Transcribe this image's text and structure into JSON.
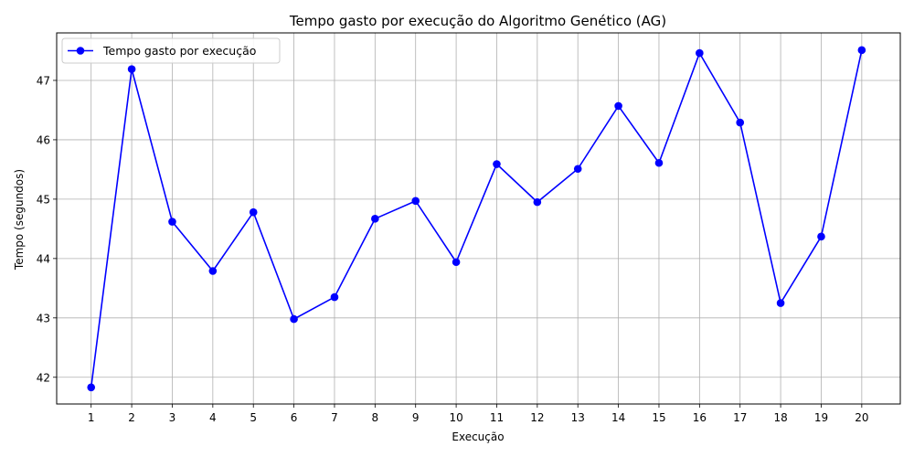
{
  "chart_data": {
    "type": "line",
    "title": "Tempo gasto por execução do Algoritmo Genético (AG)",
    "xlabel": "Execução",
    "ylabel": "Tempo (segundos)",
    "x": [
      1,
      2,
      3,
      4,
      5,
      6,
      7,
      8,
      9,
      10,
      11,
      12,
      13,
      14,
      15,
      16,
      17,
      18,
      19,
      20
    ],
    "xticks": [
      "1",
      "2",
      "3",
      "4",
      "5",
      "6",
      "7",
      "8",
      "9",
      "10",
      "11",
      "12",
      "13",
      "14",
      "15",
      "16",
      "17",
      "18",
      "19",
      "20"
    ],
    "yticks": [
      "42",
      "43",
      "44",
      "45",
      "46",
      "47"
    ],
    "ytick_values": [
      42,
      43,
      44,
      45,
      46,
      47
    ],
    "xlim": [
      0.15,
      20.95
    ],
    "ylim": [
      41.55,
      47.8
    ],
    "grid": true,
    "legend_position": "top-left",
    "series": [
      {
        "name": "Tempo gasto por execução",
        "color": "#0000ff",
        "marker": "circle",
        "values": [
          41.83,
          47.19,
          44.62,
          43.79,
          44.78,
          42.98,
          43.35,
          44.67,
          44.97,
          43.94,
          45.59,
          44.95,
          45.51,
          46.57,
          45.61,
          47.46,
          46.29,
          43.25,
          44.37,
          47.51
        ]
      }
    ]
  }
}
